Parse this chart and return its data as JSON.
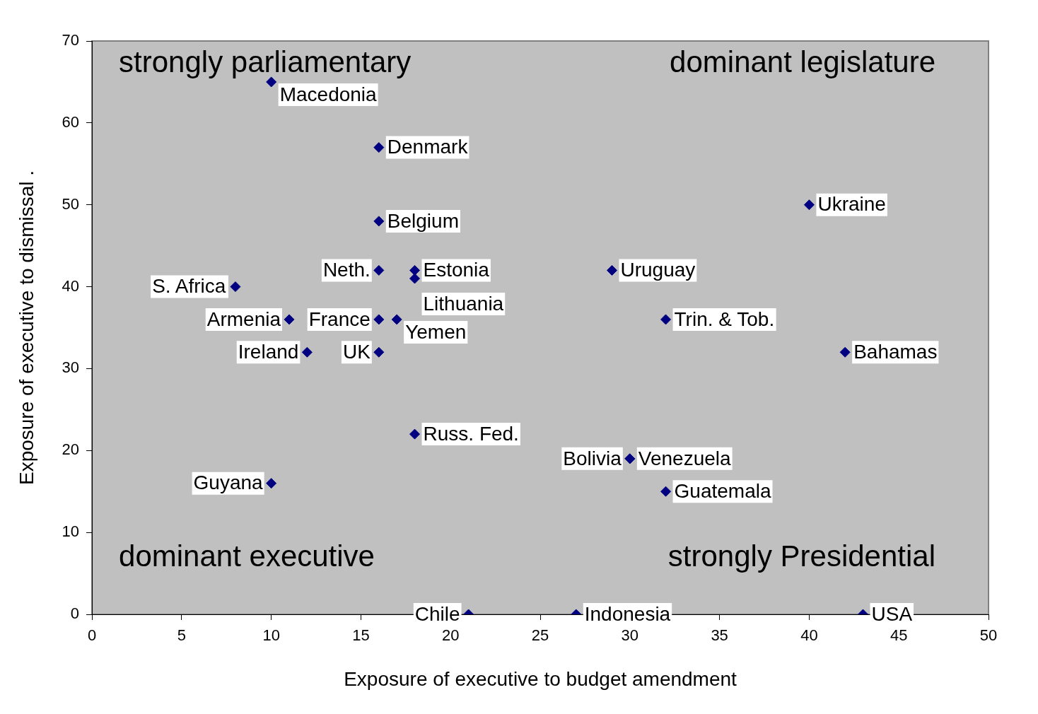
{
  "chart_data": {
    "type": "scatter",
    "xlabel": "Exposure of executive to budget amendment",
    "ylabel": "Exposure of executive to dismissal .",
    "xlim": [
      0,
      50
    ],
    "xticks": [
      0,
      5,
      10,
      15,
      20,
      25,
      30,
      35,
      40,
      45,
      50
    ],
    "ylim": [
      0,
      70
    ],
    "yticks": [
      0,
      10,
      20,
      30,
      40,
      50,
      60,
      70
    ],
    "grid": false,
    "legend": false,
    "marker": "diamond",
    "annotations": [
      "strongly parliamentary",
      "dominant legislature",
      "dominant executive",
      "strongly Presidential"
    ],
    "series": [
      {
        "color": "#000080",
        "x": [
          10,
          16,
          16,
          16,
          18,
          18,
          8,
          11,
          16,
          17,
          12,
          16,
          18,
          10,
          29,
          32,
          40,
          42,
          30,
          30,
          32,
          21,
          27,
          43
        ],
        "values": [
          65,
          57,
          48,
          42,
          42,
          41,
          40,
          36,
          36,
          36,
          32,
          32,
          22,
          16,
          42,
          36,
          50,
          32,
          19,
          19,
          15,
          0,
          0,
          0
        ],
        "value_labels": [
          "Macedonia",
          "Denmark",
          "Belgium",
          "Neth.",
          "Estonia",
          "Lithuania",
          "S. Africa",
          "Armenia",
          "France",
          "Yemen",
          "Ireland",
          "UK",
          "Russ. Fed.",
          "Guyana",
          "Uruguay",
          "Trin. & Tob.",
          "Ukraine",
          "Bahamas",
          "Venezuela",
          "Bolivia",
          "Guatemala",
          "Chile",
          "Indonesia",
          "USA"
        ]
      }
    ]
  }
}
